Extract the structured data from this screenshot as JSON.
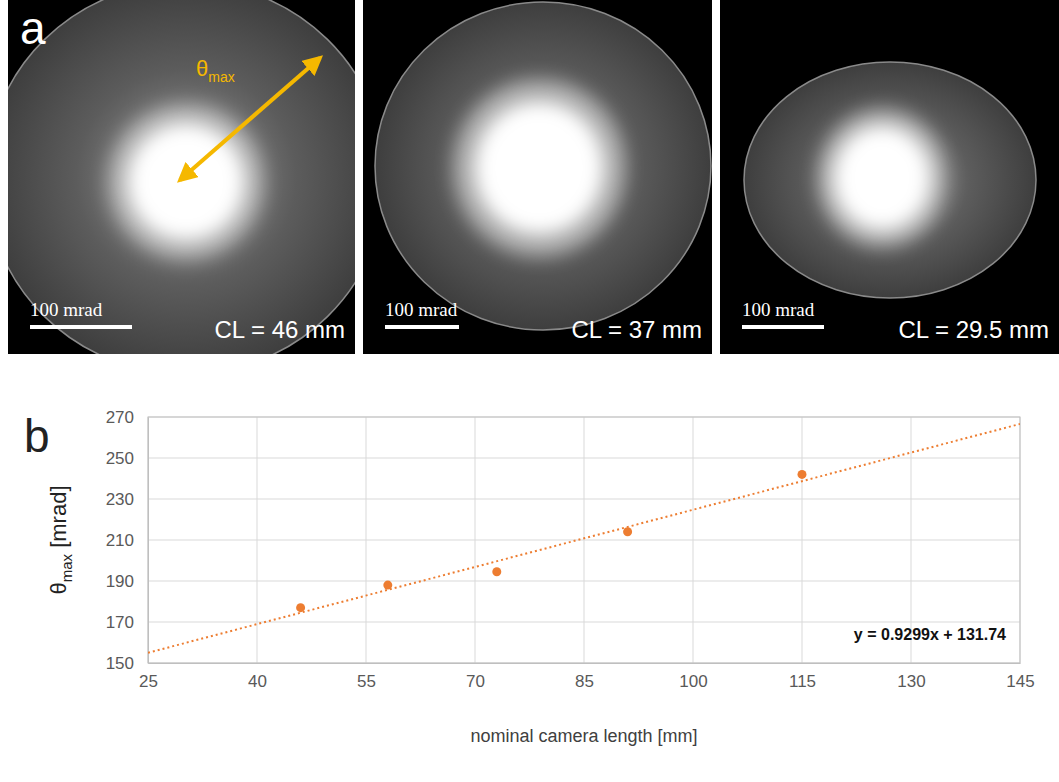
{
  "panel_labels": [
    "a",
    "b"
  ],
  "panel_a": {
    "arrow_label": {
      "symbol": "θ",
      "sub": "max"
    },
    "images": [
      {
        "scale_bar": "100 mrad",
        "label": "CL = 46 mm"
      },
      {
        "scale_bar": "100 mrad",
        "label": "CL = 37 mm"
      },
      {
        "scale_bar": "100 mrad",
        "label": "CL = 29.5 mm"
      }
    ]
  },
  "chart_data": {
    "type": "scatter",
    "x_label": "nominal camera length [mm]",
    "y_label": {
      "main": "θ",
      "sub": "max",
      "rest": " [mrad]"
    },
    "annotation": "y = 0.9299x + 131.74",
    "series": [
      {
        "type": "scatter",
        "color": "#ed7d31",
        "marker": "circle",
        "x": [
          46,
          58,
          73,
          91,
          115
        ],
        "values": [
          177,
          188,
          194.5,
          214,
          242
        ]
      },
      {
        "type": "line",
        "color": "#ed7d31",
        "line_style": "dotted",
        "x": [
          25,
          145
        ],
        "values": [
          155.0,
          266.6
        ]
      }
    ],
    "xlim": [
      25,
      145
    ],
    "xticks": [
      25,
      40,
      55,
      70,
      85,
      100,
      115,
      130,
      145
    ],
    "ylim": [
      150,
      270
    ],
    "yticks": [
      150,
      170,
      190,
      210,
      230,
      250,
      270
    ],
    "grid": true
  }
}
